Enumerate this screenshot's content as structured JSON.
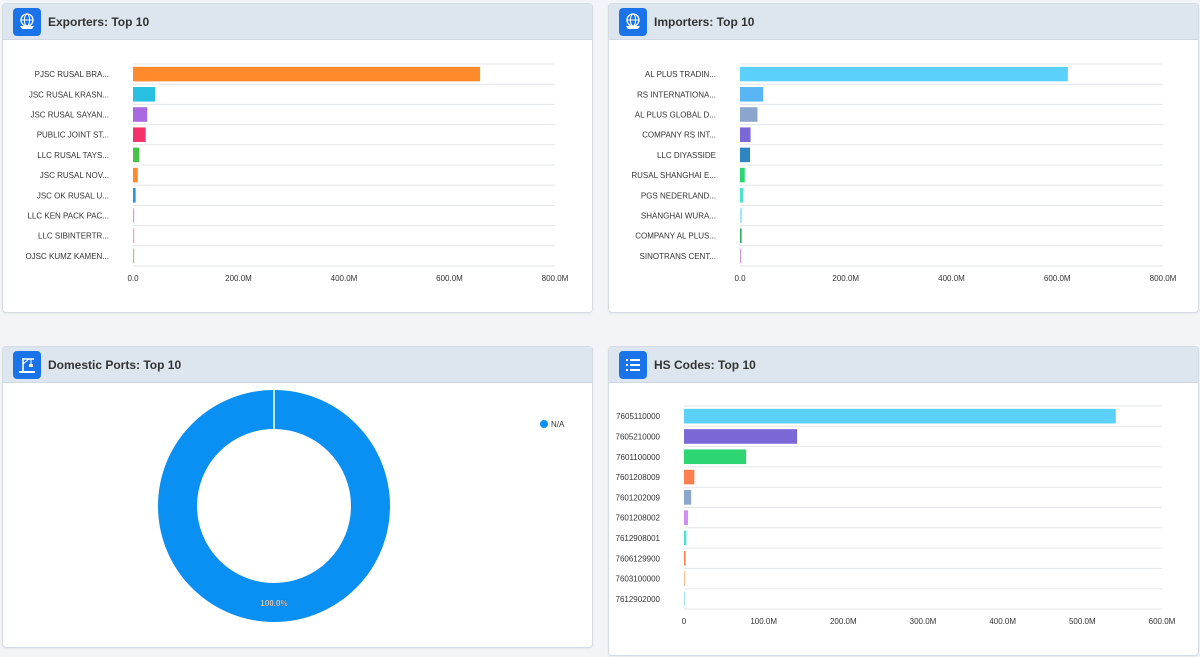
{
  "panels": {
    "exporters": {
      "title": "Exporters: Top 10",
      "icon": "globe-ship-icon"
    },
    "importers": {
      "title": "Importers: Top 10",
      "icon": "globe-ship-icon"
    },
    "ports": {
      "title": "Domestic Ports: Top 10",
      "icon": "port-crane-icon"
    },
    "hscodes": {
      "title": "HS Codes: Top 10",
      "icon": "list-icon"
    }
  },
  "chart_data": [
    {
      "id": "exporters",
      "type": "bar",
      "orientation": "horizontal",
      "categories": [
        "PJSC RUSAL BRA...",
        "JSC RUSAL KRASN...",
        "JSC RUSAL SAYAN...",
        "PUBLIC JOINT ST...",
        "LLC RUSAL TAYS...",
        "JSC RUSAL NOV...",
        "JSC OK RUSAL U...",
        "LLC KEN PACK PAC...",
        "LLC SIBINTERTR...",
        "OJSC KUMZ KAMEN..."
      ],
      "values": [
        658,
        42,
        27,
        24,
        12,
        9,
        5,
        2,
        1.5,
        1
      ],
      "colors": [
        "#ff8a2b",
        "#28c0e0",
        "#a969e0",
        "#f6306a",
        "#47c34a",
        "#ff8a2b",
        "#2f93d6",
        "#d39bef",
        "#f4a0b8",
        "#9bd46c"
      ],
      "xlim": [
        0,
        800
      ],
      "ticks": [
        "0.0",
        "200.0M",
        "400.0M",
        "600.0M",
        "800.0M"
      ]
    },
    {
      "id": "importers",
      "type": "bar",
      "orientation": "horizontal",
      "categories": [
        "AL PLUS TRADIN...",
        "RS INTERNATIONA...",
        "AL PLUS GLOBAL D...",
        "COMPANY RS INT...",
        "LLC DIYASSIDE",
        "RUSAL SHANGHAI E...",
        "PGS NEDERLAND...",
        "SHANGHAI WURA...",
        "COMPANY AL PLUS...",
        "SINOTRANS CENT..."
      ],
      "values": [
        620,
        44,
        33,
        20,
        19,
        9,
        6,
        4,
        3,
        2
      ],
      "colors": [
        "#5bd0fb",
        "#58b6f5",
        "#8aa6cc",
        "#7b68d6",
        "#2e86c1",
        "#2ed573",
        "#4fe0c7",
        "#a8e6f7",
        "#27ae60",
        "#d39bef"
      ],
      "xlim": [
        0,
        800
      ],
      "ticks": [
        "0.0",
        "200.0M",
        "400.0M",
        "600.0M",
        "800.0M"
      ]
    },
    {
      "id": "ports",
      "type": "pie",
      "donut": true,
      "labels": [
        "N/A"
      ],
      "values": [
        100
      ],
      "colors": [
        "#0a8ff2"
      ],
      "data_labels": [
        "100.0%"
      ],
      "legend": "top-right"
    },
    {
      "id": "hscodes",
      "type": "bar",
      "orientation": "horizontal",
      "categories": [
        "7605110000",
        "7605210000",
        "7601100000",
        "7601208009",
        "7601202009",
        "7601208002",
        "7612908001",
        "7606129900",
        "7603100000",
        "7612902000"
      ],
      "values": [
        542,
        142,
        78,
        13,
        9,
        5,
        3,
        2,
        1,
        0.5
      ],
      "colors": [
        "#5bd0fb",
        "#7b68d6",
        "#2ed573",
        "#ff7f50",
        "#8aa6cc",
        "#d08cf0",
        "#4fe0d0",
        "#ff7f50",
        "#f5c49b",
        "#a8e6f7"
      ],
      "xlim": [
        0,
        600
      ],
      "ticks": [
        "0",
        "100.0M",
        "200.0M",
        "300.0M",
        "400.0M",
        "500.0M",
        "600.0M"
      ]
    }
  ]
}
